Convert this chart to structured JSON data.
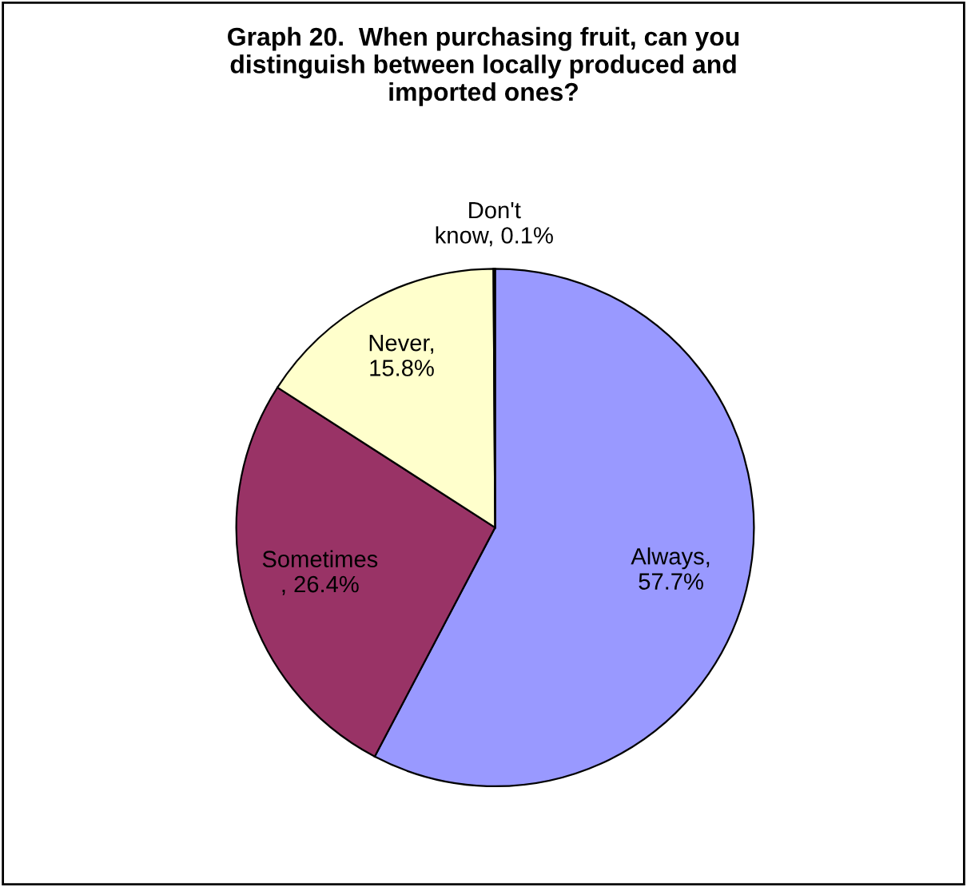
{
  "chart_data": {
    "type": "pie",
    "title": "Graph 20.  When purchasing fruit, can you\ndistinguish between locally produced and\nimported ones?",
    "categories": [
      "Always,\n57.7%",
      "Sometimes\n, 26.4%",
      "Never,\n15.8%",
      "Don't\nknow, 0.1%"
    ],
    "values": [
      57.7,
      26.4,
      15.8,
      0.1
    ],
    "colors": [
      "#9999ff",
      "#993366",
      "#ffffcc",
      "#ffffff"
    ]
  }
}
